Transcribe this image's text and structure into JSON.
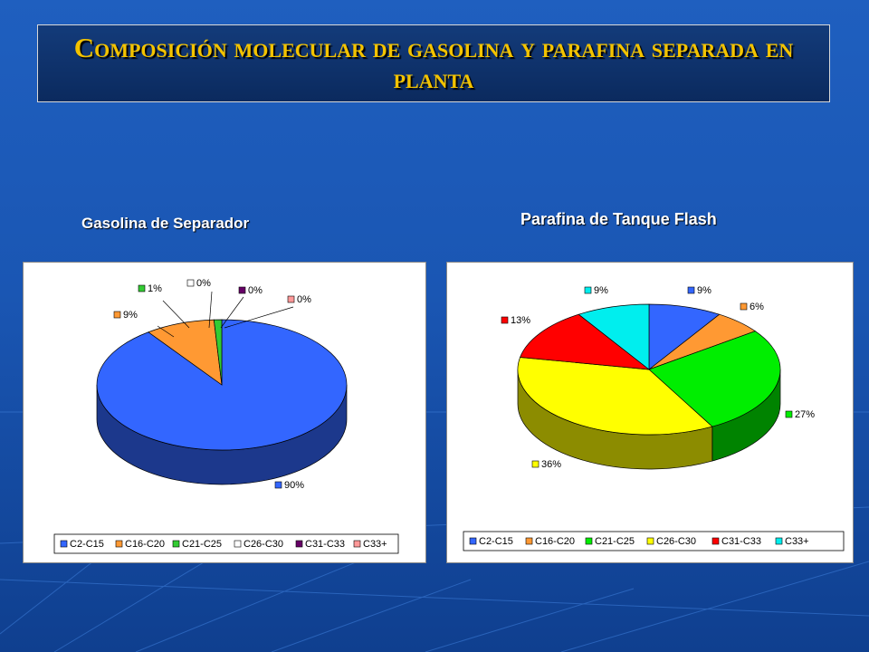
{
  "title": "Composición molecular de gasolina y parafina separada en planta",
  "chart_data": [
    {
      "type": "pie",
      "title": "Gasolina de Separador",
      "categories": [
        "C2-C15",
        "C16-C20",
        "C21-C25",
        "C26-C30",
        "C31-C33",
        "C33+"
      ],
      "values": [
        90,
        9,
        1,
        0,
        0,
        0
      ],
      "labels": [
        "90%",
        "9%",
        "1%",
        "0%",
        "0%",
        "0%"
      ],
      "colors": [
        "#3366ff",
        "#ff9933",
        "#33cc33",
        "#ffffff",
        "#660066",
        "#ff9999"
      ],
      "legend": "bottom"
    },
    {
      "type": "pie",
      "title": "Parafina de Tanque Flash",
      "categories": [
        "C2-C15",
        "C16-C20",
        "C21-C25",
        "C26-C30",
        "C31-C33",
        "C33+"
      ],
      "values": [
        9,
        6,
        27,
        36,
        13,
        9
      ],
      "labels": [
        "9%",
        "6%",
        "27%",
        "36%",
        "13%",
        "9%"
      ],
      "colors": [
        "#3366ff",
        "#ff9933",
        "#00ee00",
        "#ffff00",
        "#ff0000",
        "#00eeee"
      ],
      "legend": "bottom"
    }
  ]
}
